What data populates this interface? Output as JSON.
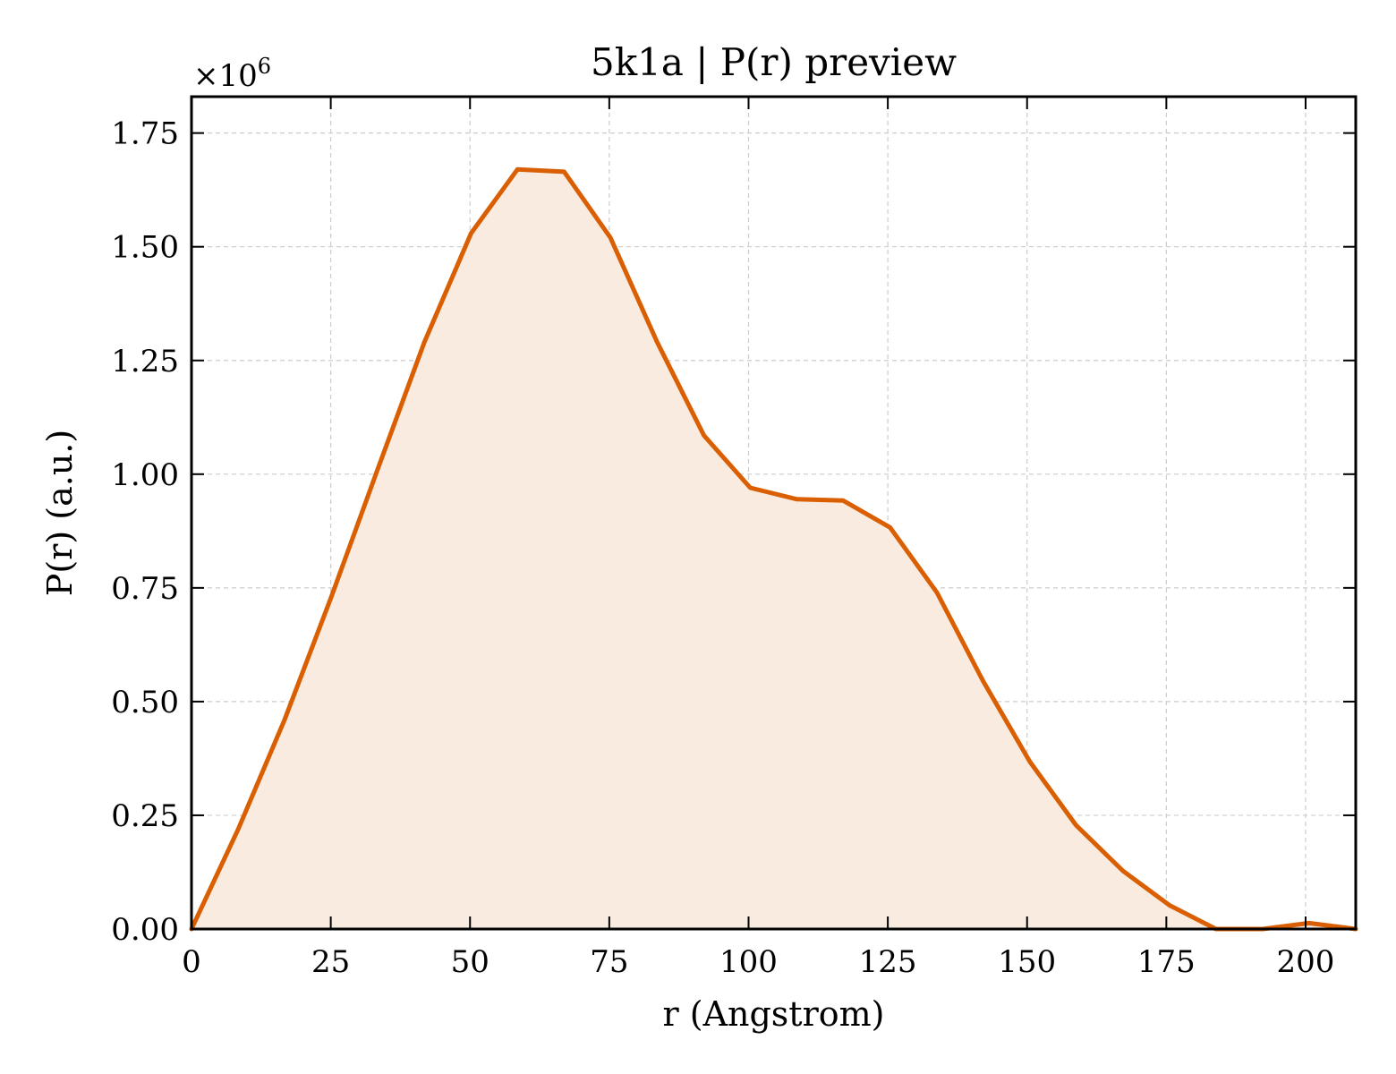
{
  "chart_data": {
    "type": "area",
    "title": "5k1a | P(r) preview",
    "xlabel": "r (Angstrom)",
    "ylabel": "P(r) (a.u.)",
    "y_multiplier": "×10",
    "y_multiplier_exp": "6",
    "xlim": [
      0,
      209
    ],
    "ylim": [
      0,
      1.83
    ],
    "x_ticks": [
      0,
      25,
      50,
      75,
      100,
      125,
      150,
      175,
      200
    ],
    "x_tick_labels": [
      "0",
      "25",
      "50",
      "75",
      "100",
      "125",
      "150",
      "175",
      "200"
    ],
    "y_ticks": [
      0,
      0.25,
      0.5,
      0.75,
      1.0,
      1.25,
      1.5,
      1.75
    ],
    "y_tick_labels": [
      "0.00",
      "0.25",
      "0.50",
      "0.75",
      "1.00",
      "1.25",
      "1.50",
      "1.75"
    ],
    "grid": true,
    "line_color": "#d95f02",
    "fill_color": "#f9ebe0",
    "series": [
      {
        "x": [
          0,
          8.4,
          16.7,
          25.1,
          33.4,
          41.8,
          50.2,
          58.5,
          66.9,
          75.2,
          83.6,
          92.0,
          100.3,
          108.7,
          117.0,
          125.4,
          133.8,
          142.1,
          150.5,
          158.8,
          167.2,
          175.6,
          183.9,
          192.3,
          200.6,
          209
        ],
        "y": [
          0.0,
          0.22,
          0.46,
          0.73,
          1.01,
          1.29,
          1.53,
          1.67,
          1.665,
          1.52,
          1.29,
          1.085,
          0.97,
          0.945,
          0.942,
          0.883,
          0.74,
          0.545,
          0.368,
          0.228,
          0.128,
          0.052,
          0.0,
          0.0,
          0.013,
          0.0
        ]
      }
    ]
  }
}
